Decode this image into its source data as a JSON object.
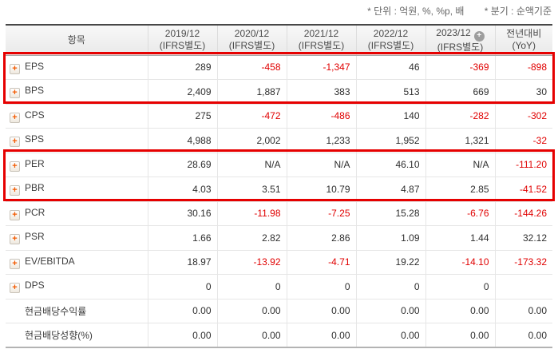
{
  "notes": {
    "unit": "* 단위 : 억원, %, %p, 배",
    "basis": "* 분기 : 순액기준"
  },
  "colors": {
    "highlight_box": "#e60000",
    "negative_value": "#e00000",
    "expand_icon": "#f25a00",
    "header_text": "#4a4a4a"
  },
  "table": {
    "item_header": "항목",
    "columns": [
      {
        "line1": "2019/12",
        "line2": "(IFRS별도)",
        "plus_icon": false
      },
      {
        "line1": "2020/12",
        "line2": "(IFRS별도)",
        "plus_icon": false
      },
      {
        "line1": "2021/12",
        "line2": "(IFRS별도)",
        "plus_icon": false
      },
      {
        "line1": "2022/12",
        "line2": "(IFRS별도)",
        "plus_icon": false
      },
      {
        "line1": "2023/12",
        "line2": "(IFRS별도)",
        "plus_icon": true
      },
      {
        "line1": "전년대비",
        "line2": "(YoY)",
        "plus_icon": false
      }
    ],
    "rows": [
      {
        "label": "EPS",
        "expandable": true,
        "values": [
          "289",
          "-458",
          "-1,347",
          "46",
          "-369",
          "-898"
        ]
      },
      {
        "label": "BPS",
        "expandable": true,
        "values": [
          "2,409",
          "1,887",
          "383",
          "513",
          "669",
          "30"
        ]
      },
      {
        "label": "CPS",
        "expandable": true,
        "values": [
          "275",
          "-472",
          "-486",
          "140",
          "-282",
          "-302"
        ]
      },
      {
        "label": "SPS",
        "expandable": true,
        "values": [
          "4,988",
          "2,002",
          "1,233",
          "1,952",
          "1,321",
          "-32"
        ]
      },
      {
        "label": "PER",
        "expandable": true,
        "values": [
          "28.69",
          "N/A",
          "N/A",
          "46.10",
          "N/A",
          "-111.20"
        ]
      },
      {
        "label": "PBR",
        "expandable": true,
        "values": [
          "4.03",
          "3.51",
          "10.79",
          "4.87",
          "2.85",
          "-41.52"
        ]
      },
      {
        "label": "PCR",
        "expandable": true,
        "values": [
          "30.16",
          "-11.98",
          "-7.25",
          "15.28",
          "-6.76",
          "-144.26"
        ]
      },
      {
        "label": "PSR",
        "expandable": true,
        "values": [
          "1.66",
          "2.82",
          "2.86",
          "1.09",
          "1.44",
          "32.12"
        ]
      },
      {
        "label": "EV/EBITDA",
        "expandable": true,
        "values": [
          "18.97",
          "-13.92",
          "-4.71",
          "19.22",
          "-14.10",
          "-173.32"
        ]
      },
      {
        "label": "DPS",
        "expandable": true,
        "values": [
          "0",
          "0",
          "0",
          "0",
          "0",
          ""
        ]
      },
      {
        "label": "현금배당수익률",
        "expandable": false,
        "values": [
          "0.00",
          "0.00",
          "0.00",
          "0.00",
          "0.00",
          "0.00"
        ]
      },
      {
        "label": "현금배당성향(%)",
        "expandable": false,
        "values": [
          "0.00",
          "0.00",
          "0.00",
          "0.00",
          "0.00",
          "0.00"
        ]
      }
    ],
    "highlighted_row_groups": [
      [
        "EPS",
        "BPS"
      ],
      [
        "PER",
        "PBR"
      ]
    ]
  }
}
